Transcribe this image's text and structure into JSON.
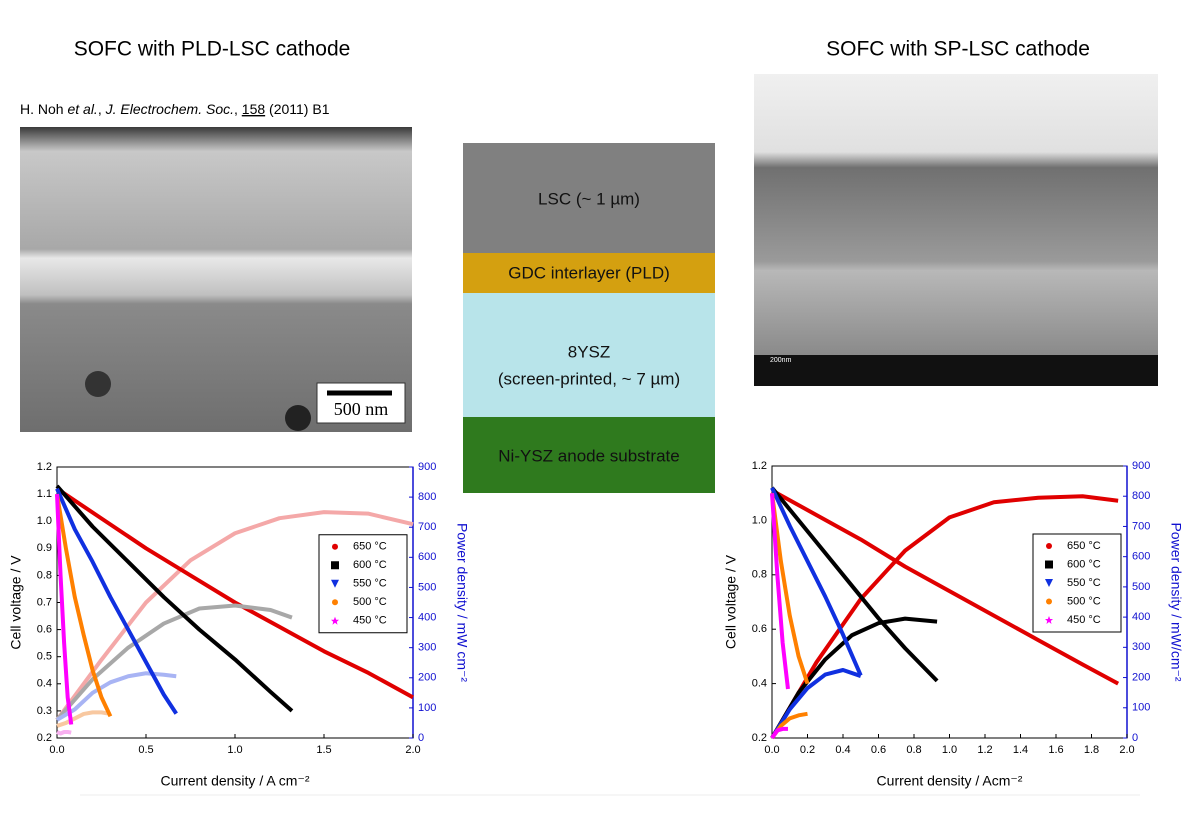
{
  "slide": {
    "title_left": "SOFC with PLD-LSC cathode",
    "title_right": "SOFC with SP-LSC cathode",
    "citation": {
      "author": "H. Noh ",
      "etal": "et al.",
      "sep1": ", ",
      "journal": "J. Electrochem. Soc.",
      "sep2": ", ",
      "volume": "158",
      "rest": " (2011) B1"
    },
    "scale_bar_left": "500 nm",
    "scale_bar_right": "200nm",
    "layers": [
      {
        "lines": [
          "LSC (~ 1 µm)"
        ]
      },
      {
        "lines": [
          "GDC interlayer (PLD)"
        ]
      },
      {
        "lines": [
          "8YSZ",
          "(screen-printed, ~ 7 µm)"
        ]
      },
      {
        "lines": [
          "Ni-YSZ anode substrate"
        ]
      }
    ]
  },
  "chart_data": [
    {
      "type": "line",
      "xlabel": "Current density / A cm⁻²",
      "ylabel": "Cell voltage / V",
      "y2label": "Power density / mW cm⁻²",
      "xlim": [
        0,
        2.0
      ],
      "xticks": [
        {
          "value": 0,
          "label": "0.0"
        },
        0.5,
        {
          "value": 1,
          "label": "1.0"
        },
        1.5,
        {
          "value": 2,
          "label": "2.0"
        }
      ],
      "ylim": [
        0.2,
        1.2
      ],
      "yticks": [
        0.2,
        0.3,
        0.4,
        0.5,
        0.6,
        0.7,
        0.8,
        0.9,
        {
          "value": 1,
          "label": "1.0"
        },
        1.1,
        1.2
      ],
      "y2lim": [
        0,
        900
      ],
      "y2ticks": [
        0,
        100,
        200,
        300,
        400,
        500,
        600,
        700,
        800,
        900
      ],
      "legend": "center right",
      "series": [
        {
          "name": "650 °C",
          "color": "#e00000",
          "power_color": "#f4a8a8",
          "marker": "circle",
          "x": [
            0,
            0.25,
            0.5,
            0.75,
            1.0,
            1.25,
            1.5,
            1.75,
            2.0
          ],
          "values": [
            1.12,
            1.01,
            0.9,
            0.8,
            0.7,
            0.61,
            0.52,
            0.44,
            0.35
          ],
          "power": [
            60,
            260,
            450,
            590,
            680,
            730,
            750,
            745,
            710
          ]
        },
        {
          "name": "600 °C",
          "color": "#000000",
          "power_color": "#a8a8a8",
          "marker": "square",
          "x": [
            0,
            0.2,
            0.4,
            0.6,
            0.8,
            1.0,
            1.2,
            1.32
          ],
          "values": [
            1.13,
            0.98,
            0.85,
            0.72,
            0.6,
            0.49,
            0.37,
            0.3
          ],
          "power": [
            60,
            195,
            300,
            380,
            430,
            440,
            425,
            400
          ]
        },
        {
          "name": "550 °C",
          "color": "#1030e0",
          "power_color": "#a8b4f4",
          "marker": "triangle",
          "x": [
            0,
            0.1,
            0.2,
            0.3,
            0.4,
            0.5,
            0.6,
            0.67
          ],
          "values": [
            1.12,
            0.97,
            0.85,
            0.72,
            0.6,
            0.48,
            0.36,
            0.29
          ],
          "power": [
            60,
            95,
            150,
            185,
            205,
            215,
            210,
            205
          ]
        },
        {
          "name": "500 °C",
          "color": "#ff8000",
          "power_color": "#f8c8a0",
          "marker": "circle",
          "x": [
            0,
            0.05,
            0.1,
            0.15,
            0.2,
            0.25,
            0.3
          ],
          "values": [
            1.1,
            0.9,
            0.72,
            0.58,
            0.45,
            0.35,
            0.28
          ],
          "power": [
            40,
            50,
            65,
            80,
            85,
            85,
            80
          ]
        },
        {
          "name": "450 °C",
          "color": "#ff00ff",
          "power_color": "#f8b0f0",
          "marker": "star",
          "x": [
            0,
            0.02,
            0.04,
            0.06,
            0.08
          ],
          "values": [
            1.1,
            0.8,
            0.55,
            0.35,
            0.25
          ],
          "power": [
            20,
            15,
            20,
            20,
            18
          ]
        }
      ]
    },
    {
      "type": "line",
      "xlabel": "Current density / Acm⁻²",
      "ylabel": "Cell voltage / V",
      "y2label": "Power density / mW/cm⁻²",
      "xlim": [
        0,
        2.0
      ],
      "xticks": [
        {
          "value": 0,
          "label": "0.0"
        },
        0.2,
        0.4,
        0.6,
        0.8,
        {
          "value": 1,
          "label": "1.0"
        },
        1.2,
        1.4,
        1.6,
        1.8,
        {
          "value": 2,
          "label": "2.0"
        }
      ],
      "ylim": [
        0.2,
        1.2
      ],
      "yticks": [
        0.2,
        0.4,
        0.6,
        0.8,
        {
          "value": 1,
          "label": "1.0"
        },
        1.2
      ],
      "y2lim": [
        0,
        900
      ],
      "y2ticks": [
        0,
        100,
        200,
        300,
        400,
        500,
        600,
        700,
        800,
        900
      ],
      "legend": "center right",
      "series": [
        {
          "name": "650 °C",
          "color": "#e00000",
          "power_color": "#e00000",
          "marker": "circle",
          "x": [
            0,
            0.25,
            0.5,
            0.75,
            1.0,
            1.25,
            1.5,
            1.75,
            1.95
          ],
          "values": [
            1.11,
            1.02,
            0.93,
            0.83,
            0.74,
            0.65,
            0.56,
            0.47,
            0.4
          ],
          "power": [
            0,
            250,
            460,
            620,
            730,
            780,
            795,
            800,
            785
          ]
        },
        {
          "name": "600 °C",
          "color": "#000000",
          "power_color": "#000000",
          "marker": "square",
          "x": [
            0,
            0.15,
            0.3,
            0.45,
            0.6,
            0.75,
            0.93
          ],
          "values": [
            1.12,
            1.0,
            0.88,
            0.76,
            0.64,
            0.53,
            0.41
          ],
          "power": [
            0,
            150,
            260,
            340,
            380,
            395,
            385
          ]
        },
        {
          "name": "550 °C",
          "color": "#1030e0",
          "power_color": "#1030e0",
          "marker": "triangle",
          "x": [
            0,
            0.1,
            0.2,
            0.3,
            0.4,
            0.5
          ],
          "values": [
            1.12,
            0.98,
            0.85,
            0.72,
            0.58,
            0.43
          ],
          "power": [
            0,
            95,
            165,
            210,
            225,
            205
          ]
        },
        {
          "name": "500 °C",
          "color": "#ff8000",
          "power_color": "#ff8000",
          "marker": "circle",
          "x": [
            0,
            0.05,
            0.1,
            0.15,
            0.2
          ],
          "values": [
            1.1,
            0.85,
            0.65,
            0.5,
            0.4
          ],
          "power": [
            0,
            40,
            65,
            75,
            80
          ]
        },
        {
          "name": "450 °C",
          "color": "#ff00ff",
          "power_color": "#ff00ff",
          "marker": "star",
          "x": [
            0,
            0.03,
            0.06,
            0.09
          ],
          "values": [
            1.1,
            0.8,
            0.55,
            0.38
          ],
          "power": [
            0,
            25,
            30,
            30
          ]
        }
      ]
    }
  ]
}
